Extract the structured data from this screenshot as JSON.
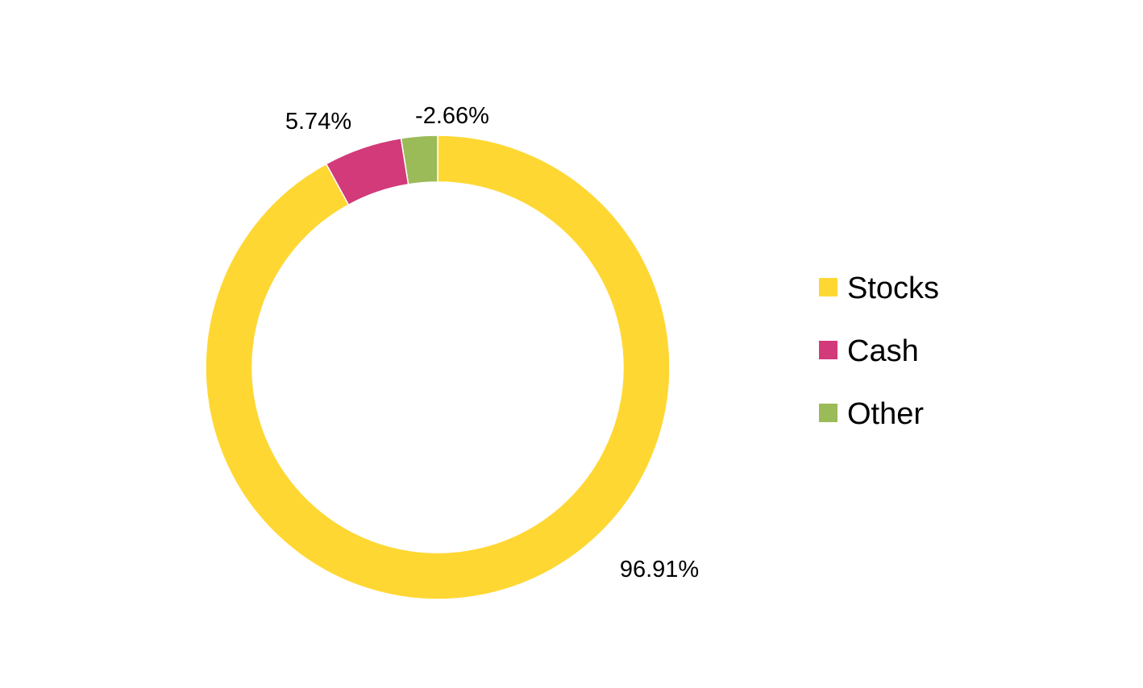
{
  "chart_data": {
    "type": "pie",
    "style": "donut",
    "direction": "clockwise",
    "start_angle_deg": 0,
    "legend_position": "right",
    "categories": [
      "Stocks",
      "Cash",
      "Other"
    ],
    "values": [
      96.91,
      5.74,
      -2.66
    ],
    "labels": [
      "96.91%",
      "5.74%",
      "-2.66%"
    ],
    "colors": [
      "#FFD733",
      "#D23A7A",
      "#9BBB59"
    ],
    "title": ""
  }
}
